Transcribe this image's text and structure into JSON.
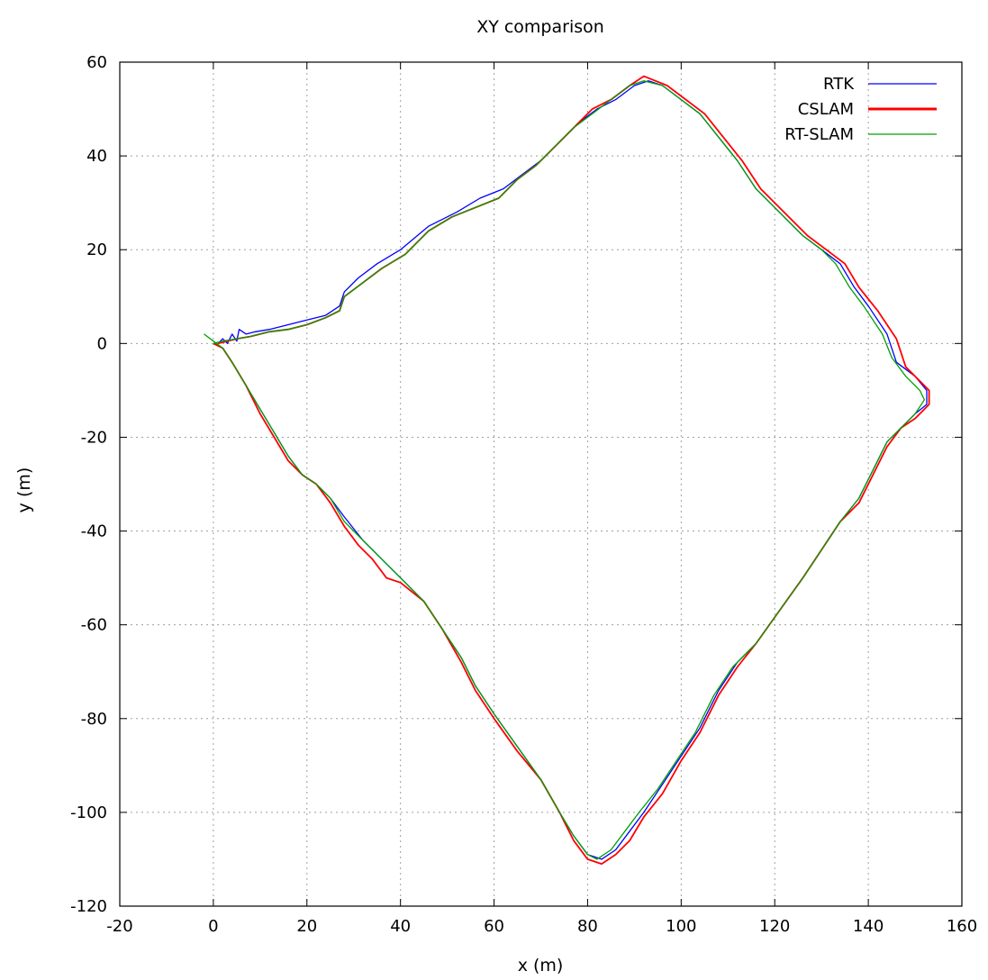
{
  "chart_data": {
    "type": "line",
    "title": "XY comparison",
    "xlabel": "x (m)",
    "ylabel": "y (m)",
    "xlim": [
      -20,
      160
    ],
    "ylim": [
      -120,
      60
    ],
    "xticks": [
      -20,
      0,
      20,
      40,
      60,
      80,
      100,
      120,
      140,
      160
    ],
    "yticks": [
      -120,
      -100,
      -80,
      -60,
      -40,
      -20,
      0,
      20,
      40,
      60
    ],
    "grid": true,
    "legend_position": "top-right",
    "series": [
      {
        "name": "RTK",
        "color": "#0000ff",
        "points": [
          [
            0.5,
            0
          ],
          [
            2,
            -1
          ],
          [
            4,
            -4
          ],
          [
            7,
            -9
          ],
          [
            10,
            -14
          ],
          [
            13,
            -19
          ],
          [
            16,
            -24
          ],
          [
            19,
            -28
          ],
          [
            22,
            -30
          ],
          [
            25,
            -33
          ],
          [
            28,
            -37
          ],
          [
            32,
            -42
          ],
          [
            36,
            -46
          ],
          [
            40,
            -50
          ],
          [
            45,
            -55
          ],
          [
            49,
            -61
          ],
          [
            53,
            -67
          ],
          [
            56,
            -73
          ],
          [
            60,
            -79
          ],
          [
            65,
            -86
          ],
          [
            70,
            -93
          ],
          [
            74,
            -100
          ],
          [
            77,
            -105
          ],
          [
            80,
            -109
          ],
          [
            83,
            -110
          ],
          [
            86,
            -108
          ],
          [
            89,
            -104
          ],
          [
            92,
            -100
          ],
          [
            96,
            -94
          ],
          [
            100,
            -88
          ],
          [
            104,
            -82
          ],
          [
            108,
            -74
          ],
          [
            112,
            -68
          ],
          [
            116,
            -64
          ],
          [
            121,
            -57
          ],
          [
            126,
            -50
          ],
          [
            130,
            -44
          ],
          [
            134,
            -38
          ],
          [
            138,
            -33
          ],
          [
            141,
            -27
          ],
          [
            144,
            -21
          ],
          [
            147,
            -18
          ],
          [
            150,
            -15
          ],
          [
            152.5,
            -13
          ],
          [
            152.5,
            -10
          ],
          [
            150,
            -7
          ],
          [
            146,
            -4
          ],
          [
            144,
            2
          ],
          [
            140,
            8
          ],
          [
            137,
            12
          ],
          [
            134,
            17
          ],
          [
            130,
            20
          ],
          [
            126,
            23
          ],
          [
            121,
            28
          ],
          [
            116,
            33
          ],
          [
            112,
            39
          ],
          [
            108,
            44
          ],
          [
            104,
            49
          ],
          [
            100,
            52
          ],
          [
            96,
            55
          ],
          [
            93,
            56
          ],
          [
            90,
            55
          ],
          [
            86,
            52
          ],
          [
            82,
            50
          ],
          [
            78,
            47
          ],
          [
            74,
            43
          ],
          [
            70,
            39
          ],
          [
            66,
            36
          ],
          [
            62,
            33
          ],
          [
            57,
            31
          ],
          [
            52,
            28
          ],
          [
            46,
            25
          ],
          [
            40,
            20
          ],
          [
            35,
            17
          ],
          [
            31,
            14
          ],
          [
            28,
            11
          ],
          [
            27,
            8
          ],
          [
            24,
            6
          ],
          [
            20,
            5
          ],
          [
            16,
            4
          ],
          [
            12,
            3
          ],
          [
            9,
            2.5
          ],
          [
            7,
            2
          ],
          [
            5.5,
            3
          ],
          [
            5,
            0.5
          ],
          [
            4,
            2
          ],
          [
            3,
            0
          ],
          [
            2,
            1
          ],
          [
            1,
            0
          ]
        ]
      },
      {
        "name": "CSLAM",
        "color": "#ff0000",
        "points": [
          [
            0,
            0
          ],
          [
            2,
            -1
          ],
          [
            4,
            -4
          ],
          [
            7,
            -9
          ],
          [
            10,
            -15
          ],
          [
            13,
            -20
          ],
          [
            16,
            -25
          ],
          [
            19,
            -28
          ],
          [
            22,
            -30
          ],
          [
            25,
            -34
          ],
          [
            28,
            -39
          ],
          [
            31,
            -43
          ],
          [
            34,
            -46
          ],
          [
            37,
            -50
          ],
          [
            40,
            -51
          ],
          [
            45,
            -55
          ],
          [
            49,
            -61
          ],
          [
            53,
            -68
          ],
          [
            56,
            -74
          ],
          [
            60,
            -80
          ],
          [
            65,
            -87
          ],
          [
            70,
            -93
          ],
          [
            74,
            -100
          ],
          [
            77,
            -106
          ],
          [
            80,
            -110
          ],
          [
            83,
            -111
          ],
          [
            86,
            -109
          ],
          [
            89,
            -106
          ],
          [
            92,
            -101
          ],
          [
            96,
            -96
          ],
          [
            100,
            -89
          ],
          [
            104,
            -83
          ],
          [
            108,
            -75
          ],
          [
            112,
            -69
          ],
          [
            116,
            -64
          ],
          [
            121,
            -57
          ],
          [
            126,
            -50
          ],
          [
            130,
            -44
          ],
          [
            134,
            -38
          ],
          [
            138,
            -34
          ],
          [
            141,
            -28
          ],
          [
            144,
            -22
          ],
          [
            147,
            -18
          ],
          [
            150,
            -16
          ],
          [
            153,
            -13
          ],
          [
            153,
            -10
          ],
          [
            151,
            -8
          ],
          [
            148,
            -5
          ],
          [
            146,
            1
          ],
          [
            142,
            7
          ],
          [
            138,
            12
          ],
          [
            135,
            17
          ],
          [
            131,
            20
          ],
          [
            127,
            23
          ],
          [
            122,
            28
          ],
          [
            117,
            33
          ],
          [
            113,
            39
          ],
          [
            109,
            44
          ],
          [
            105,
            49
          ],
          [
            101,
            52
          ],
          [
            97,
            55
          ],
          [
            92,
            57
          ],
          [
            89,
            55
          ],
          [
            85,
            52
          ],
          [
            81,
            50
          ],
          [
            77,
            46
          ],
          [
            73,
            42
          ],
          [
            69,
            38
          ],
          [
            65,
            35
          ],
          [
            61,
            31
          ],
          [
            56,
            29
          ],
          [
            51,
            27
          ],
          [
            46,
            24
          ],
          [
            41,
            19
          ],
          [
            36,
            16
          ],
          [
            32,
            13
          ],
          [
            28,
            10
          ],
          [
            27,
            7
          ],
          [
            24,
            5.5
          ],
          [
            20,
            4
          ],
          [
            16,
            3
          ],
          [
            12,
            2.5
          ],
          [
            8,
            1.5
          ],
          [
            5,
            1
          ],
          [
            3,
            0.5
          ],
          [
            1,
            0
          ]
        ]
      },
      {
        "name": "RT-SLAM",
        "color": "#00a000",
        "points": [
          [
            -2,
            2
          ],
          [
            0,
            0.5
          ],
          [
            2,
            -1
          ],
          [
            4,
            -4
          ],
          [
            7,
            -9
          ],
          [
            10,
            -14
          ],
          [
            13,
            -19
          ],
          [
            16,
            -24
          ],
          [
            19,
            -28
          ],
          [
            22,
            -30
          ],
          [
            25,
            -33
          ],
          [
            28,
            -38
          ],
          [
            32,
            -42
          ],
          [
            36,
            -46
          ],
          [
            40,
            -50
          ],
          [
            45,
            -55
          ],
          [
            49,
            -61
          ],
          [
            53,
            -67
          ],
          [
            56,
            -73
          ],
          [
            60,
            -79
          ],
          [
            65,
            -86
          ],
          [
            70,
            -93
          ],
          [
            74,
            -100
          ],
          [
            77,
            -105
          ],
          [
            80,
            -109
          ],
          [
            82,
            -110
          ],
          [
            85,
            -108
          ],
          [
            88,
            -104
          ],
          [
            91,
            -100
          ],
          [
            95,
            -95
          ],
          [
            99,
            -89
          ],
          [
            103,
            -83
          ],
          [
            107,
            -75
          ],
          [
            111,
            -69
          ],
          [
            116,
            -64
          ],
          [
            121,
            -57
          ],
          [
            126,
            -50
          ],
          [
            130,
            -44
          ],
          [
            134,
            -38
          ],
          [
            138,
            -33
          ],
          [
            141,
            -27
          ],
          [
            144,
            -21
          ],
          [
            147,
            -18
          ],
          [
            150,
            -15
          ],
          [
            152,
            -12
          ],
          [
            151,
            -10
          ],
          [
            148,
            -7
          ],
          [
            145,
            -3
          ],
          [
            143,
            2
          ],
          [
            139,
            8
          ],
          [
            136,
            12
          ],
          [
            133,
            17
          ],
          [
            130,
            20
          ],
          [
            126,
            23
          ],
          [
            121,
            28
          ],
          [
            116,
            33
          ],
          [
            112,
            39
          ],
          [
            108,
            44
          ],
          [
            104,
            49
          ],
          [
            100,
            52
          ],
          [
            96,
            55
          ],
          [
            92,
            56
          ],
          [
            89,
            55
          ],
          [
            85,
            52
          ],
          [
            81,
            49
          ],
          [
            77,
            46
          ],
          [
            73,
            42
          ],
          [
            69,
            38
          ],
          [
            65,
            35
          ],
          [
            61,
            31
          ],
          [
            56,
            29
          ],
          [
            51,
            27
          ],
          [
            46,
            24
          ],
          [
            41,
            19
          ],
          [
            36,
            16
          ],
          [
            32,
            13
          ],
          [
            28,
            10
          ],
          [
            27,
            7
          ],
          [
            24,
            5.5
          ],
          [
            20,
            4
          ],
          [
            16,
            3
          ],
          [
            12,
            2.5
          ],
          [
            8,
            1.5
          ],
          [
            5,
            1
          ],
          [
            2,
            0.5
          ],
          [
            0,
            0
          ]
        ]
      }
    ]
  }
}
